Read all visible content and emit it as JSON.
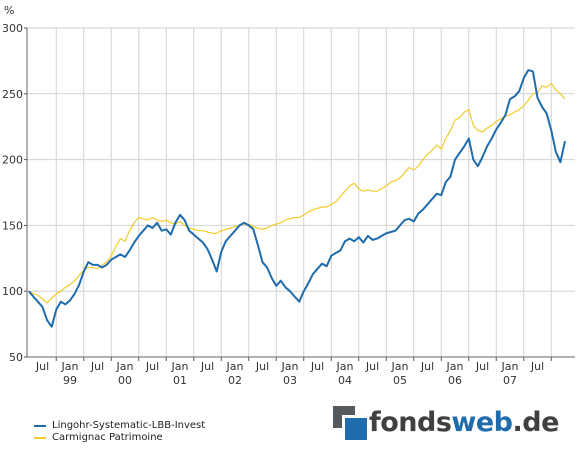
{
  "chart_data": {
    "type": "line",
    "unit_label": "%",
    "ylim": [
      50,
      300
    ],
    "y_ticks": [
      "50",
      "100",
      "150",
      "200",
      "250",
      "300"
    ],
    "x_ticks": [
      {
        "label": "Jul",
        "year": ""
      },
      {
        "label": "Jan",
        "year": "99"
      },
      {
        "label": "Jul",
        "year": ""
      },
      {
        "label": "Jan",
        "year": "00"
      },
      {
        "label": "Jul",
        "year": ""
      },
      {
        "label": "Jan",
        "year": "01"
      },
      {
        "label": "Jul",
        "year": ""
      },
      {
        "label": "Jan",
        "year": "02"
      },
      {
        "label": "Jul",
        "year": ""
      },
      {
        "label": "Jan",
        "year": "03"
      },
      {
        "label": "Jul",
        "year": ""
      },
      {
        "label": "Jan",
        "year": "04"
      },
      {
        "label": "Jul",
        "year": ""
      },
      {
        "label": "Jan",
        "year": "05"
      },
      {
        "label": "Jul",
        "year": ""
      },
      {
        "label": "Jan",
        "year": "06"
      },
      {
        "label": "Jul",
        "year": ""
      },
      {
        "label": "Jan",
        "year": "07"
      },
      {
        "label": "Jul",
        "year": ""
      }
    ],
    "grid": true,
    "legend_position": "bottom-left",
    "series": [
      {
        "name": "Lingohr-Systematic-LBB-Invest",
        "color": "#1f6cad",
        "points": [
          [
            "1998-04",
            100
          ],
          [
            "1998-05",
            96
          ],
          [
            "1998-06",
            92
          ],
          [
            "1998-07",
            88
          ],
          [
            "1998-08",
            78
          ],
          [
            "1998-09",
            73
          ],
          [
            "1998-10",
            86
          ],
          [
            "1998-11",
            92
          ],
          [
            "1998-12",
            90
          ],
          [
            "1999-01",
            93
          ],
          [
            "1999-02",
            98
          ],
          [
            "1999-03",
            105
          ],
          [
            "1999-04",
            115
          ],
          [
            "1999-05",
            122
          ],
          [
            "1999-06",
            120
          ],
          [
            "1999-07",
            120
          ],
          [
            "1999-08",
            118
          ],
          [
            "1999-09",
            120
          ],
          [
            "1999-10",
            124
          ],
          [
            "1999-11",
            126
          ],
          [
            "1999-12",
            128
          ],
          [
            "2000-01",
            126
          ],
          [
            "2000-02",
            131
          ],
          [
            "2000-03",
            137
          ],
          [
            "2000-04",
            142
          ],
          [
            "2000-05",
            146
          ],
          [
            "2000-06",
            150
          ],
          [
            "2000-07",
            148
          ],
          [
            "2000-08",
            152
          ],
          [
            "2000-09",
            146
          ],
          [
            "2000-10",
            147
          ],
          [
            "2000-11",
            143
          ],
          [
            "2000-12",
            152
          ],
          [
            "2001-01",
            158
          ],
          [
            "2001-02",
            154
          ],
          [
            "2001-03",
            146
          ],
          [
            "2001-04",
            143
          ],
          [
            "2001-05",
            140
          ],
          [
            "2001-06",
            137
          ],
          [
            "2001-07",
            132
          ],
          [
            "2001-08",
            124
          ],
          [
            "2001-09",
            115
          ],
          [
            "2001-10",
            130
          ],
          [
            "2001-11",
            138
          ],
          [
            "2001-12",
            142
          ],
          [
            "2002-01",
            146
          ],
          [
            "2002-02",
            150
          ],
          [
            "2002-03",
            152
          ],
          [
            "2002-04",
            150
          ],
          [
            "2002-05",
            147
          ],
          [
            "2002-06",
            135
          ],
          [
            "2002-07",
            122
          ],
          [
            "2002-08",
            118
          ],
          [
            "2002-09",
            110
          ],
          [
            "2002-10",
            104
          ],
          [
            "2002-11",
            108
          ],
          [
            "2002-12",
            103
          ],
          [
            "2003-01",
            100
          ],
          [
            "2003-02",
            96
          ],
          [
            "2003-03",
            92
          ],
          [
            "2003-04",
            100
          ],
          [
            "2003-05",
            106
          ],
          [
            "2003-06",
            113
          ],
          [
            "2003-07",
            117
          ],
          [
            "2003-08",
            121
          ],
          [
            "2003-09",
            119
          ],
          [
            "2003-10",
            127
          ],
          [
            "2003-11",
            129
          ],
          [
            "2003-12",
            131
          ],
          [
            "2004-01",
            138
          ],
          [
            "2004-02",
            140
          ],
          [
            "2004-03",
            138
          ],
          [
            "2004-04",
            141
          ],
          [
            "2004-05",
            137
          ],
          [
            "2004-06",
            142
          ],
          [
            "2004-07",
            139
          ],
          [
            "2004-08",
            140
          ],
          [
            "2004-09",
            142
          ],
          [
            "2004-10",
            144
          ],
          [
            "2004-11",
            145
          ],
          [
            "2004-12",
            146
          ],
          [
            "2005-01",
            150
          ],
          [
            "2005-02",
            154
          ],
          [
            "2005-03",
            155
          ],
          [
            "2005-04",
            153
          ],
          [
            "2005-05",
            159
          ],
          [
            "2005-06",
            162
          ],
          [
            "2005-07",
            166
          ],
          [
            "2005-08",
            170
          ],
          [
            "2005-09",
            174
          ],
          [
            "2005-10",
            173
          ],
          [
            "2005-11",
            183
          ],
          [
            "2005-12",
            187
          ],
          [
            "2006-01",
            200
          ],
          [
            "2006-02",
            205
          ],
          [
            "2006-03",
            210
          ],
          [
            "2006-04",
            216
          ],
          [
            "2006-05",
            200
          ],
          [
            "2006-06",
            195
          ],
          [
            "2006-07",
            202
          ],
          [
            "2006-08",
            210
          ],
          [
            "2006-09",
            216
          ],
          [
            "2006-10",
            223
          ],
          [
            "2006-11",
            228
          ],
          [
            "2006-12",
            234
          ],
          [
            "2007-01",
            246
          ],
          [
            "2007-02",
            248
          ],
          [
            "2007-03",
            252
          ],
          [
            "2007-04",
            262
          ],
          [
            "2007-05",
            268
          ],
          [
            "2007-06",
            267
          ],
          [
            "2007-07",
            247
          ],
          [
            "2007-08",
            240
          ],
          [
            "2007-09",
            235
          ],
          [
            "2007-10",
            222
          ],
          [
            "2007-11",
            206
          ],
          [
            "2007-12",
            198
          ],
          [
            "2008-01",
            214
          ]
        ]
      },
      {
        "name": "Carmignac Patrimoine",
        "color": "#f2cc2c",
        "points": [
          [
            "1998-04",
            100
          ],
          [
            "1998-05",
            98
          ],
          [
            "1998-06",
            97
          ],
          [
            "1998-07",
            94
          ],
          [
            "1998-08",
            91
          ],
          [
            "1998-09",
            95
          ],
          [
            "1998-10",
            98
          ],
          [
            "1998-11",
            100
          ],
          [
            "1998-12",
            103
          ],
          [
            "1999-01",
            105
          ],
          [
            "1999-02",
            108
          ],
          [
            "1999-03",
            112
          ],
          [
            "1999-04",
            116
          ],
          [
            "1999-05",
            118
          ],
          [
            "1999-06",
            118
          ],
          [
            "1999-07",
            117
          ],
          [
            "1999-08",
            120
          ],
          [
            "1999-09",
            122
          ],
          [
            "1999-10",
            127
          ],
          [
            "1999-11",
            134
          ],
          [
            "1999-12",
            140
          ],
          [
            "2000-01",
            138
          ],
          [
            "2000-02",
            146
          ],
          [
            "2000-03",
            152
          ],
          [
            "2000-04",
            156
          ],
          [
            "2000-05",
            155
          ],
          [
            "2000-06",
            154
          ],
          [
            "2000-07",
            156
          ],
          [
            "2000-08",
            154
          ],
          [
            "2000-09",
            153
          ],
          [
            "2000-10",
            154
          ],
          [
            "2000-11",
            152
          ],
          [
            "2000-12",
            151
          ],
          [
            "2001-01",
            153
          ],
          [
            "2001-02",
            150
          ],
          [
            "2001-03",
            148
          ],
          [
            "2001-04",
            147
          ],
          [
            "2001-05",
            146
          ],
          [
            "2001-06",
            146
          ],
          [
            "2001-07",
            145
          ],
          [
            "2001-08",
            144
          ],
          [
            "2001-09",
            144
          ],
          [
            "2001-10",
            146
          ],
          [
            "2001-11",
            147
          ],
          [
            "2001-12",
            148
          ],
          [
            "2002-01",
            149
          ],
          [
            "2002-02",
            150
          ],
          [
            "2002-03",
            151
          ],
          [
            "2002-04",
            151
          ],
          [
            "2002-05",
            149
          ],
          [
            "2002-06",
            148
          ],
          [
            "2002-07",
            147
          ],
          [
            "2002-08",
            148
          ],
          [
            "2002-09",
            150
          ],
          [
            "2002-10",
            151
          ],
          [
            "2002-11",
            152
          ],
          [
            "2002-12",
            154
          ],
          [
            "2003-01",
            155
          ],
          [
            "2003-02",
            156
          ],
          [
            "2003-03",
            156
          ],
          [
            "2003-04",
            158
          ],
          [
            "2003-05",
            160
          ],
          [
            "2003-06",
            162
          ],
          [
            "2003-07",
            163
          ],
          [
            "2003-08",
            164
          ],
          [
            "2003-09",
            164
          ],
          [
            "2003-10",
            166
          ],
          [
            "2003-11",
            168
          ],
          [
            "2003-12",
            172
          ],
          [
            "2004-01",
            176
          ],
          [
            "2004-02",
            180
          ],
          [
            "2004-03",
            182
          ],
          [
            "2004-04",
            178
          ],
          [
            "2004-05",
            176
          ],
          [
            "2004-06",
            177
          ],
          [
            "2004-07",
            176
          ],
          [
            "2004-08",
            176
          ],
          [
            "2004-09",
            178
          ],
          [
            "2004-10",
            180
          ],
          [
            "2004-11",
            183
          ],
          [
            "2004-12",
            184
          ],
          [
            "2005-01",
            186
          ],
          [
            "2005-02",
            190
          ],
          [
            "2005-03",
            194
          ],
          [
            "2005-04",
            192
          ],
          [
            "2005-05",
            195
          ],
          [
            "2005-06",
            200
          ],
          [
            "2005-07",
            204
          ],
          [
            "2005-08",
            207
          ],
          [
            "2005-09",
            211
          ],
          [
            "2005-10",
            208
          ],
          [
            "2005-11",
            216
          ],
          [
            "2005-12",
            222
          ],
          [
            "2006-01",
            230
          ],
          [
            "2006-02",
            232
          ],
          [
            "2006-03",
            236
          ],
          [
            "2006-04",
            238
          ],
          [
            "2006-05",
            226
          ],
          [
            "2006-06",
            222
          ],
          [
            "2006-07",
            221
          ],
          [
            "2006-08",
            224
          ],
          [
            "2006-09",
            226
          ],
          [
            "2006-10",
            229
          ],
          [
            "2006-11",
            231
          ],
          [
            "2006-12",
            233
          ],
          [
            "2007-01",
            234
          ],
          [
            "2007-02",
            236
          ],
          [
            "2007-03",
            238
          ],
          [
            "2007-04",
            241
          ],
          [
            "2007-05",
            245
          ],
          [
            "2007-06",
            250
          ],
          [
            "2007-07",
            251
          ],
          [
            "2007-08",
            256
          ],
          [
            "2007-09",
            255
          ],
          [
            "2007-10",
            258
          ],
          [
            "2007-11",
            253
          ],
          [
            "2007-12",
            250
          ],
          [
            "2008-01",
            246
          ]
        ]
      }
    ]
  },
  "legend": {
    "items": [
      {
        "label": "Lingohr-Systematic-LBB-Invest",
        "color": "#1f6cad"
      },
      {
        "label": "Carmignac Patrimoine",
        "color": "#f2cc2c"
      }
    ]
  },
  "logo": {
    "part1": "fonds",
    "part2": "web",
    "part3": ".de"
  }
}
